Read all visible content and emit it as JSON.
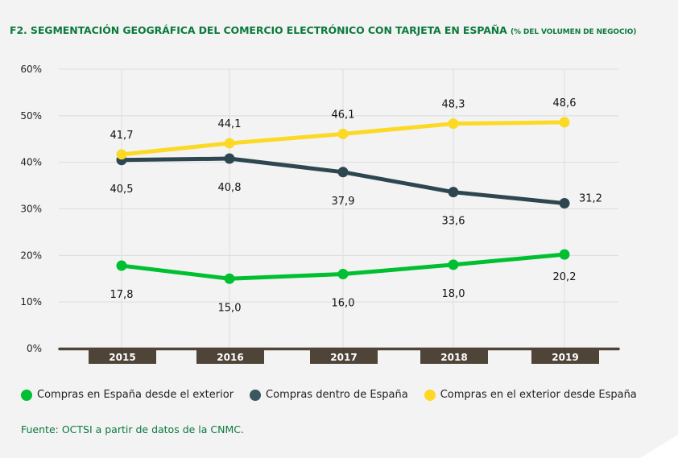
{
  "header": {
    "title": "F2. SEGMENTACIÓN GEOGRÁFICA DEL COMERCIO ELECTRÓNICO CON TARJETA EN ESPAÑA",
    "subtitle": "(% DEL VOLUMEN DE NEGOCIO)"
  },
  "colors": {
    "green": "#00c032",
    "dark": "#2d4650",
    "yellow": "#fcd925",
    "axis_bar": "#4e4438",
    "title_green": "#0a7a3c"
  },
  "chart_data": {
    "type": "line",
    "title": "F2. SEGMENTACIÓN GEOGRÁFICA DEL COMERCIO ELECTRÓNICO CON TARJETA EN ESPAÑA (% DEL VOLUMEN DE NEGOCIO)",
    "xlabel": "",
    "ylabel": "",
    "categories": [
      "2015",
      "2016",
      "2017",
      "2018",
      "2019"
    ],
    "yticks": [
      "0%",
      "10%",
      "20%",
      "30%",
      "40%",
      "50%",
      "60%"
    ],
    "ylim": [
      0,
      60
    ],
    "grid": true,
    "legend_position": "bottom",
    "series": [
      {
        "name": "Compras en España desde el exterior",
        "color": "#00c032",
        "values": [
          17.8,
          15.0,
          16.0,
          18.0,
          20.2
        ],
        "labels": [
          "17,8",
          "15,0",
          "16,0",
          "18,0",
          "20,2"
        ],
        "label_position": "below"
      },
      {
        "name": "Compras dentro de España",
        "color": "#2d4650",
        "values": [
          40.5,
          40.8,
          37.9,
          33.6,
          31.2
        ],
        "labels": [
          "40,5",
          "40,8",
          "37,9",
          "33,6",
          "31,2"
        ],
        "label_position": "below"
      },
      {
        "name": "Compras en el exterior desde España",
        "color": "#fcd925",
        "values": [
          41.7,
          44.1,
          46.1,
          48.3,
          48.6
        ],
        "labels": [
          "41,7",
          "44,1",
          "46,1",
          "48,3",
          "48,6"
        ],
        "label_position": "above"
      }
    ]
  },
  "footer": {
    "source": "Fuente: OCTSI a partir de datos de la CNMC."
  }
}
